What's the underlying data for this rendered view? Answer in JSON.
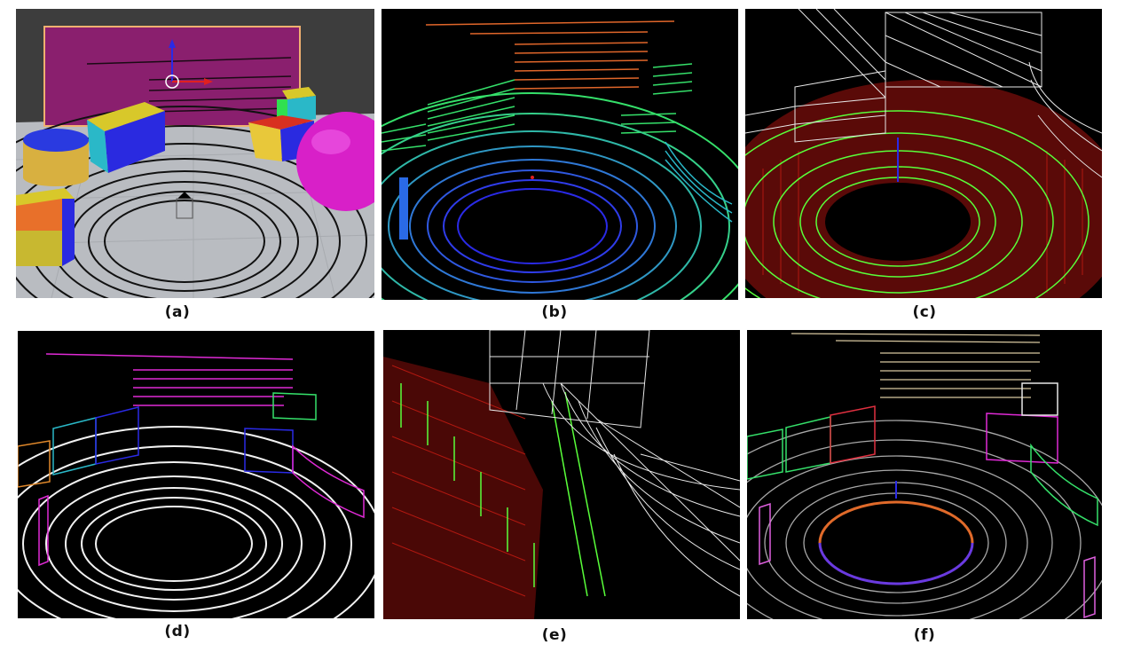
{
  "figure": {
    "panels": [
      {
        "id": "a",
        "caption": "(a)",
        "view": "rendered simulation scene"
      },
      {
        "id": "b",
        "caption": "(b)",
        "view": "height-colored point cloud"
      },
      {
        "id": "c",
        "caption": "(c)",
        "view": "mesh with normals"
      },
      {
        "id": "d",
        "caption": "(d)",
        "view": "object-colored point cloud"
      },
      {
        "id": "e",
        "caption": "(e)",
        "view": "zoomed mesh with normals"
      },
      {
        "id": "f",
        "caption": "(f)",
        "view": "intensity-colored point cloud"
      }
    ]
  },
  "colors": {
    "background_dark": "#000000",
    "scene_sky": "#3d3d3d",
    "scene_floor": "#b9bcc1",
    "wall_magenta": "#8a1f6e",
    "scan_blue": "#2a2ae6",
    "scan_green": "#35e06a",
    "scan_orange": "#e0662a",
    "mesh_white": "#e8e8e8",
    "normal_green": "#59ff3a",
    "normal_red": "#9a1410",
    "point_white": "#f2f2f2",
    "point_magenta": "#e02ad6"
  }
}
